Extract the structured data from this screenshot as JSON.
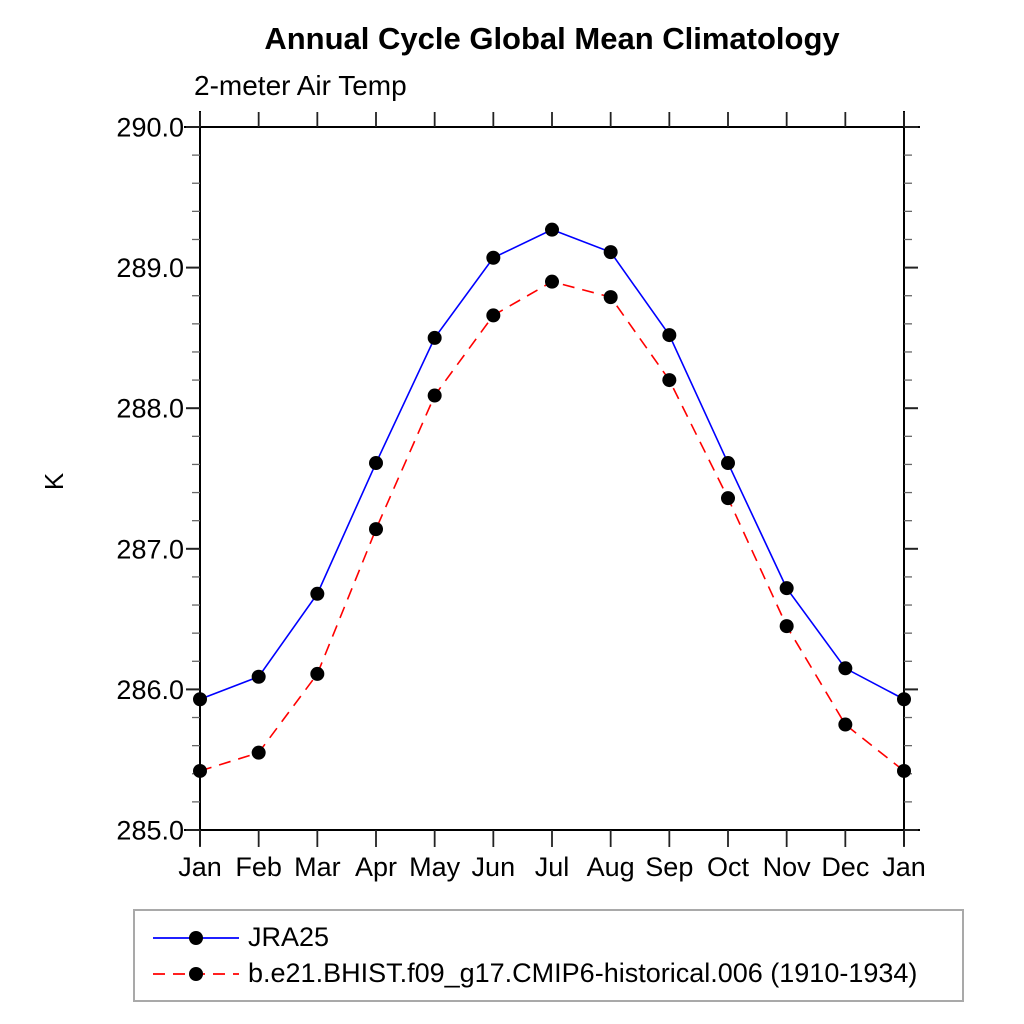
{
  "page": {
    "background": "#ffffff",
    "frame_color": "#000000",
    "legend_border_color": "#a9a9a9"
  },
  "chart_data": {
    "type": "line",
    "title": "Annual Cycle Global Mean Climatology",
    "subtitle": "2-meter Air Temp",
    "xlabel": "",
    "ylabel": "K",
    "categories": [
      "Jan",
      "Feb",
      "Mar",
      "Apr",
      "May",
      "Jun",
      "Jul",
      "Aug",
      "Sep",
      "Oct",
      "Nov",
      "Dec",
      "Jan"
    ],
    "ylim": [
      285.0,
      290.0
    ],
    "yticks_major": [
      285.0,
      286.0,
      287.0,
      288.0,
      289.0,
      290.0
    ],
    "ytick_labels": [
      "285.0",
      "286.0",
      "287.0",
      "288.0",
      "289.0",
      "290.0"
    ],
    "minor_tick_interval": 0.2,
    "grid": false,
    "legend_position": "bottom-left",
    "marker": "filled-circle",
    "marker_color": "#000000",
    "series": [
      {
        "name": "JRA25",
        "color": "#0000ff",
        "line_style": "solid",
        "values": [
          285.93,
          286.09,
          286.68,
          287.61,
          288.5,
          289.07,
          289.27,
          289.11,
          288.52,
          287.61,
          286.72,
          286.15,
          285.93
        ]
      },
      {
        "name": "b.e21.BHIST.f09_g17.CMIP6-historical.006 (1910-1934)",
        "color": "#ff0000",
        "line_style": "dashed",
        "values": [
          285.42,
          285.55,
          286.11,
          287.14,
          288.09,
          288.66,
          288.9,
          288.79,
          288.2,
          287.36,
          286.45,
          285.75,
          285.42
        ]
      }
    ]
  }
}
